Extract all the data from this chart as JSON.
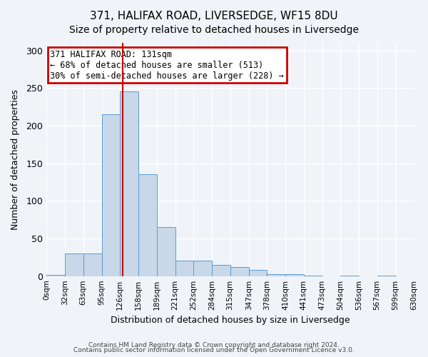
{
  "title1": "371, HALIFAX ROAD, LIVERSEDGE, WF15 8DU",
  "title2": "Size of property relative to detached houses in Liversedge",
  "xlabel": "Distribution of detached houses by size in Liversedge",
  "ylabel": "Number of detached properties",
  "bin_edges": [
    0,
    32,
    63,
    95,
    126,
    158,
    189,
    221,
    252,
    284,
    315,
    347,
    378,
    410,
    441,
    473,
    504,
    536,
    567,
    599,
    630
  ],
  "bar_heights": [
    2,
    30,
    30,
    215,
    245,
    135,
    65,
    21,
    21,
    15,
    12,
    8,
    3,
    3,
    1,
    0,
    1,
    0,
    1,
    0
  ],
  "bar_color": "#c8d8e8",
  "bar_edge_color": "#5b9bd5",
  "property_size": 131,
  "vline_color": "#cc0000",
  "annotation_text": "371 HALIFAX ROAD: 131sqm\n← 68% of detached houses are smaller (513)\n30% of semi-detached houses are larger (228) →",
  "annotation_box_color": "#cc0000",
  "annotation_text_color": "#000000",
  "ylim": [
    0,
    310
  ],
  "tick_labels": [
    "0sqm",
    "32sqm",
    "63sqm",
    "95sqm",
    "126sqm",
    "158sqm",
    "189sqm",
    "221sqm",
    "252sqm",
    "284sqm",
    "315sqm",
    "347sqm",
    "378sqm",
    "410sqm",
    "441sqm",
    "473sqm",
    "504sqm",
    "536sqm",
    "567sqm",
    "599sqm",
    "630sqm"
  ],
  "footer1": "Contains HM Land Registry data © Crown copyright and database right 2024.",
  "footer2": "Contains public sector information licensed under the Open Government Licence v3.0.",
  "bg_color": "#f0f4f8",
  "grid_color": "#ffffff",
  "title_fontsize": 11,
  "subtitle_fontsize": 10
}
